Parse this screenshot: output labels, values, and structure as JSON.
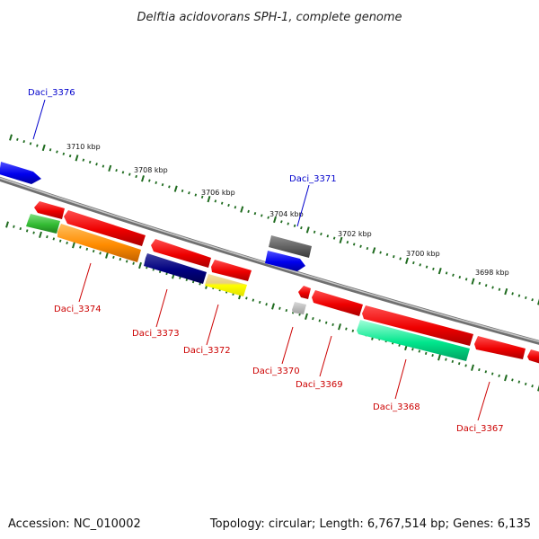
{
  "title": "Delftia acidovorans SPH-1, complete genome",
  "footer": {
    "accession": "Accession: NC_010002",
    "stats": "Topology: circular; Length: 6,767,514 bp; Genes: 6,135"
  },
  "colors": {
    "backbone": "#808080",
    "tick": "#1f6b1f",
    "forward_label": "#0000cc",
    "reverse_label": "#cc0000"
  },
  "ruler_labels": [
    "3710 kbp",
    "3708 kbp",
    "3706 kbp",
    "3704 kbp",
    "3702 kbp",
    "3700 kbp",
    "3698 kbp"
  ],
  "genes": {
    "forward": [
      {
        "label": "Daci_3376",
        "color": "#0000ee"
      },
      {
        "label": "Daci_3371",
        "color": "#0000ee"
      }
    ],
    "reverse": [
      {
        "label": "Daci_3374",
        "color": "#ff8c00"
      },
      {
        "label": "Daci_3373",
        "color": "#000080"
      },
      {
        "label": "Daci_3372",
        "color": "#ffff00"
      },
      {
        "label": "Daci_3370",
        "color": "#b0b0b0"
      },
      {
        "label": "Daci_3369",
        "color": "#ff0000"
      },
      {
        "label": "Daci_3368",
        "color": "#00e68c"
      },
      {
        "label": "Daci_3367",
        "color": "#ff0000"
      }
    ]
  }
}
